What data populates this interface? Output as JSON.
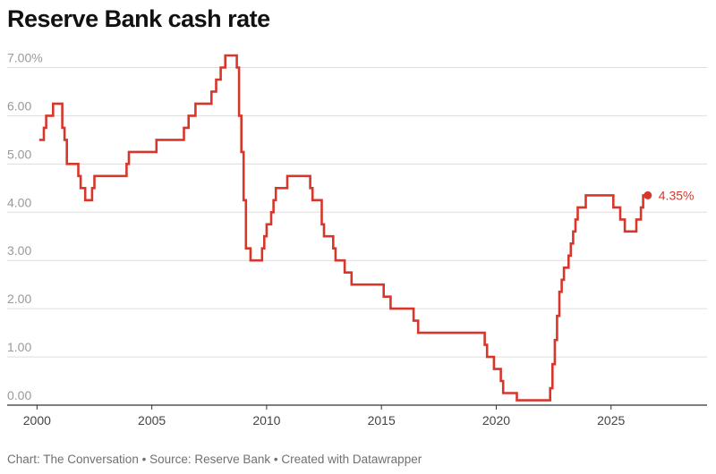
{
  "title": "Reserve Bank cash rate",
  "footer": {
    "credit": "Chart: The Conversation",
    "separator": " • ",
    "source": "Source: Reserve Bank",
    "made_with": "Created with Datawrapper"
  },
  "colors": {
    "line": "#d7372b",
    "grid": "#dddddd",
    "tick_y": "#9a9a9a",
    "tick_x": "#444444",
    "baseline": "#333333",
    "annotation": "#d7372b"
  },
  "chart_data": {
    "type": "line",
    "title": "Reserve Bank cash rate",
    "xlabel": "",
    "ylabel": "",
    "xlim": [
      1998.7,
      2027.7
    ],
    "ylim": [
      0,
      7.25
    ],
    "step": true,
    "grid": true,
    "y_ticks": [
      {
        "value": 0,
        "label": "0.00"
      },
      {
        "value": 1,
        "label": "1.00"
      },
      {
        "value": 2,
        "label": "2.00"
      },
      {
        "value": 3,
        "label": "3.00"
      },
      {
        "value": 4,
        "label": "4.00"
      },
      {
        "value": 5,
        "label": "5.00"
      },
      {
        "value": 6,
        "label": "6.00"
      },
      {
        "value": 7,
        "label": "7.00%"
      }
    ],
    "x_ticks": [
      {
        "value": 2000,
        "label": "2000"
      },
      {
        "value": 2005,
        "label": "2005"
      },
      {
        "value": 2010,
        "label": "2010"
      },
      {
        "value": 2015,
        "label": "2015"
      },
      {
        "value": 2020,
        "label": "2020"
      },
      {
        "value": 2025,
        "label": "2025"
      }
    ],
    "series": [
      {
        "points": [
          [
            2000.1,
            5.5
          ],
          [
            2000.3,
            5.75
          ],
          [
            2000.4,
            6.0
          ],
          [
            2000.7,
            6.25
          ],
          [
            2001.1,
            5.75
          ],
          [
            2001.2,
            5.5
          ],
          [
            2001.3,
            5.0
          ],
          [
            2001.8,
            4.75
          ],
          [
            2001.9,
            4.5
          ],
          [
            2002.1,
            4.25
          ],
          [
            2002.4,
            4.5
          ],
          [
            2002.5,
            4.75
          ],
          [
            2003.9,
            5.0
          ],
          [
            2004.0,
            5.25
          ],
          [
            2005.2,
            5.5
          ],
          [
            2006.4,
            5.75
          ],
          [
            2006.6,
            6.0
          ],
          [
            2006.9,
            6.25
          ],
          [
            2007.6,
            6.5
          ],
          [
            2007.8,
            6.75
          ],
          [
            2008.0,
            7.0
          ],
          [
            2008.2,
            7.25
          ],
          [
            2008.7,
            7.0
          ],
          [
            2008.8,
            6.0
          ],
          [
            2008.9,
            5.25
          ],
          [
            2009.0,
            4.25
          ],
          [
            2009.1,
            3.25
          ],
          [
            2009.3,
            3.0
          ],
          [
            2009.8,
            3.25
          ],
          [
            2009.9,
            3.5
          ],
          [
            2010.0,
            3.75
          ],
          [
            2010.2,
            4.0
          ],
          [
            2010.3,
            4.25
          ],
          [
            2010.4,
            4.5
          ],
          [
            2010.9,
            4.75
          ],
          [
            2011.9,
            4.5
          ],
          [
            2012.0,
            4.25
          ],
          [
            2012.4,
            3.75
          ],
          [
            2012.5,
            3.5
          ],
          [
            2012.9,
            3.25
          ],
          [
            2013.0,
            3.0
          ],
          [
            2013.4,
            2.75
          ],
          [
            2013.7,
            2.5
          ],
          [
            2015.1,
            2.25
          ],
          [
            2015.4,
            2.0
          ],
          [
            2016.4,
            1.75
          ],
          [
            2016.6,
            1.5
          ],
          [
            2019.5,
            1.25
          ],
          [
            2019.6,
            1.0
          ],
          [
            2019.9,
            0.75
          ],
          [
            2020.2,
            0.5
          ],
          [
            2020.3,
            0.25
          ],
          [
            2020.9,
            0.1
          ],
          [
            2022.35,
            0.35
          ],
          [
            2022.45,
            0.85
          ],
          [
            2022.55,
            1.35
          ],
          [
            2022.65,
            1.85
          ],
          [
            2022.75,
            2.35
          ],
          [
            2022.85,
            2.6
          ],
          [
            2022.95,
            2.85
          ],
          [
            2023.15,
            3.1
          ],
          [
            2023.25,
            3.35
          ],
          [
            2023.35,
            3.6
          ],
          [
            2023.45,
            3.85
          ],
          [
            2023.55,
            4.1
          ],
          [
            2023.9,
            4.35
          ],
          [
            2025.1,
            4.1
          ],
          [
            2025.4,
            3.85
          ],
          [
            2025.6,
            3.6
          ],
          [
            2026.1,
            3.85
          ],
          [
            2026.3,
            4.1
          ],
          [
            2026.4,
            4.35
          ],
          [
            2026.6,
            4.35
          ]
        ]
      }
    ],
    "annotation": {
      "x": 2026.6,
      "y": 4.35,
      "label": "4.35%"
    }
  }
}
